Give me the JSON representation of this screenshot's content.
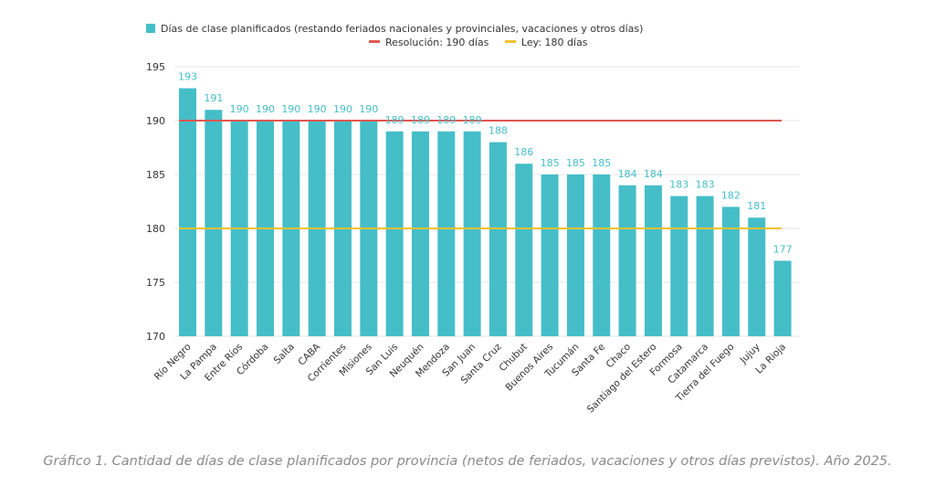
{
  "chart_data": {
    "type": "bar",
    "categories": [
      "Río Negro",
      "La Pampa",
      "Entre Ríos",
      "Córdoba",
      "Salta",
      "CABA",
      "Corrientes",
      "Misiones",
      "San Luis",
      "Neuquén",
      "Mendoza",
      "San Juan",
      "Santa Cruz",
      "Chubut",
      "Buenos Aires",
      "Tucumán",
      "Santa Fe",
      "Chaco",
      "Santiago del Estero",
      "Formosa",
      "Catamarca",
      "Tierra del Fuego",
      "Jujuy",
      "La Rioja"
    ],
    "series": [
      {
        "name": "Días de clase planificados (restando feriados nacionales y provinciales, vacaciones y otros días)",
        "color": "#45BEC8",
        "values": [
          193,
          191,
          190,
          190,
          190,
          190,
          190,
          190,
          189,
          189,
          189,
          189,
          188,
          186,
          185,
          185,
          185,
          184,
          184,
          183,
          183,
          182,
          181,
          177
        ]
      }
    ],
    "reference_lines": [
      {
        "name": "Resolución: 190 días",
        "value": 190,
        "color": "#E0574F"
      },
      {
        "name": "Ley: 180 días",
        "value": 180,
        "color": "#F2C12E"
      }
    ],
    "ylim": [
      170,
      195
    ],
    "yticks": [
      170,
      175,
      180,
      185,
      190,
      195
    ],
    "xlabel": "",
    "ylabel": "",
    "grid": true,
    "legend_position": "top",
    "label_color": "#45BEC8"
  },
  "caption": "Gráfico 1. Cantidad de días de clase planificados por provincia (netos de feriados, vacaciones y otros días previstos). Año 2025."
}
